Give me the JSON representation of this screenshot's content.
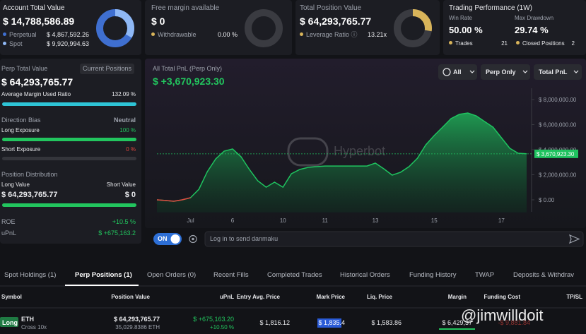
{
  "account": {
    "title": "Account Total Value",
    "value": "$ 14,788,586.89",
    "perpetual_label": "Perpetual",
    "perpetual_value": "$ 4,867,592.26",
    "spot_label": "Spot",
    "spot_value": "$ 9,920,994.63"
  },
  "free_margin": {
    "title": "Free margin available",
    "value": "$ 0",
    "withdrawable_label": "Withdrawable",
    "withdrawable_value": "0.00 %"
  },
  "position_value": {
    "title": "Total Position Value",
    "value": "$ 64,293,765.77",
    "leverage_label": "Leverage Ratio",
    "leverage_value": "13.21x"
  },
  "performance": {
    "title": "Trading Performance (1W)",
    "win_rate_label": "Win Rate",
    "win_rate": "50.00 %",
    "max_drawdown_label": "Max Drawdown",
    "max_drawdown": "29.74 %",
    "trades_label": "Trades",
    "trades": "21",
    "closed_label": "Closed Positions",
    "closed": "2"
  },
  "summary": {
    "title": "Perp Total Value",
    "button": "Current Positions",
    "value": "$ 64,293,765.77",
    "margin_ratio_label": "Average Margin Used Ratio",
    "margin_ratio": "132.09 %",
    "direction_label": "Direction Bias",
    "direction": "Neutral",
    "long_label": "Long Exposure",
    "long": "100 %",
    "short_label": "Short Exposure",
    "short": "0 %",
    "distribution_label": "Position Distribution",
    "long_value_label": "Long Value",
    "short_value_label": "Short Value",
    "long_value": "$ 64,293,765.77",
    "short_value": "$ 0",
    "roe_label": "ROE",
    "roe": "+10.5 %",
    "upnl_label": "uPnL",
    "upnl": "$ +675,163.2"
  },
  "pnl_chart": {
    "type": "line",
    "title": "All Total PnL (Perp Only)",
    "value": "$ +3,670,923.30",
    "filters": [
      "All",
      "Perp Only",
      "Total PnL"
    ],
    "watermark": "Hyperbot",
    "categories": [
      null,
      null,
      null,
      null,
      "Jul",
      null,
      null,
      null,
      null,
      "6",
      null,
      null,
      null,
      null,
      null,
      "10",
      null,
      null,
      null,
      null,
      "11",
      null,
      null,
      null,
      null,
      null,
      "13",
      null,
      null,
      null,
      null,
      null,
      null,
      "15",
      null,
      null,
      null,
      null,
      null,
      null,
      null,
      "17",
      null,
      null,
      null
    ],
    "values": [
      0,
      -50000,
      -110000,
      0,
      170000,
      845000,
      2250000,
      3270000,
      3890000,
      4060000,
      3440000,
      2420000,
      1520000,
      1010000,
      1410000,
      1010000,
      2080000,
      2420000,
      2590000,
      2650000,
      2700000,
      2700000,
      2700000,
      2700000,
      2700000,
      2700000,
      2930000,
      2480000,
      1970000,
      2200000,
      2650000,
      3320000,
      4390000,
      5130000,
      5800000,
      6480000,
      6820000,
      6930000,
      6700000,
      6250000,
      5800000,
      4960000,
      4110000,
      3720000,
      3670923.3
    ],
    "color": "#1fc35f",
    "negative_color": "#e0463f",
    "ylim": [
      -1000000,
      9000000
    ],
    "yticks": [
      {
        "value": 0,
        "label": "$ 0.00"
      },
      {
        "value": 2000000,
        "label": "$ 2,000,000.00"
      },
      {
        "value": 4000000,
        "label": "$ 4,000,000.00"
      },
      {
        "value": 6000000,
        "label": "$ 6,000,000.00"
      },
      {
        "value": 8000000,
        "label": "$ 8,000,000.00"
      }
    ],
    "last_value_label": "$ 3,670,923.30"
  },
  "controls": {
    "toggle": "ON",
    "placeholder": "Log in to send danmaku"
  },
  "tabs": [
    "Spot Holdings (1)",
    "Perp Positions (1)",
    "Open Orders (0)",
    "Recent Fills",
    "Completed Trades",
    "Historical Orders",
    "Funding History",
    "TWAP",
    "Deposits & Withdrav"
  ],
  "table": {
    "headers": [
      "Symbol",
      "Position Value",
      "uPnL",
      "Entry Avg. Price",
      "Mark Price",
      "Liq. Price",
      "Margin",
      "Funding Cost",
      "TP/SL"
    ],
    "rows": [
      {
        "side": "Long",
        "symbol": "ETH",
        "margin_mode": "Cross 10x",
        "position_value": "$ 64,293,765.77",
        "size": "35,029.8386 ETH",
        "upnl": "$ +675,163.20",
        "upnl_pct": "+10.50 %",
        "entry": "$ 1,816.12",
        "mark": "$ 1,835.4",
        "liq": "$ 1,583.86",
        "margin": "$ 6,429,37",
        "funding": "-$ 9,881.84"
      }
    ]
  },
  "watermark": "@jimwilldoit"
}
